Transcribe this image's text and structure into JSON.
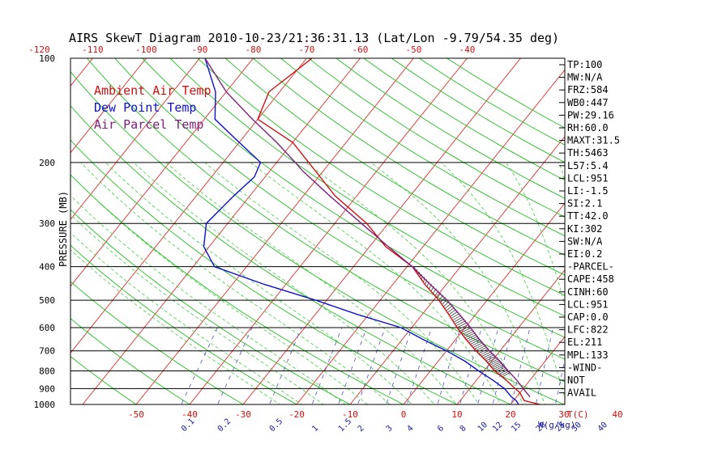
{
  "chart_data": {
    "type": "line",
    "title": "AIRS SkewT Diagram 2010-10-23/21:36:31.13 (Lat/Lon -9.79/54.35 deg)",
    "ylabel": "PRESSURE (MB)",
    "xlabel": "T(C)",
    "mixing_ratio_unit": "W(g/kg)",
    "y_scale": "log",
    "ylim": [
      1000,
      100
    ],
    "y_ticks": [
      100,
      200,
      300,
      400,
      500,
      600,
      700,
      800,
      900,
      1000
    ],
    "bottom_temp_ticks": [
      "-50",
      "-40",
      "-30",
      "-20",
      "-10",
      "0",
      "10",
      "20",
      "30",
      "40"
    ],
    "top_temp_ticks": [
      "-120",
      "-110",
      "-100",
      "-90",
      "-80",
      "-70",
      "-60",
      "-50",
      "-40"
    ],
    "mixing_ratio_ticks": [
      "0.1",
      "0.2",
      "0.5",
      "1",
      "1.5",
      "2",
      "3",
      "4",
      "6",
      "8",
      "10",
      "12",
      "15",
      "20",
      "25",
      "30",
      "40"
    ],
    "legend": {
      "placement": "top-left",
      "entries": [
        {
          "name": "Ambient Air Temp",
          "color": "#d01010"
        },
        {
          "name": "Dew Point Temp",
          "color": "#1010d0"
        },
        {
          "name": "Air Parcel Temp",
          "color": "#802080"
        }
      ]
    },
    "series": [
      {
        "name": "Ambient Air Temp",
        "color": "#d01010",
        "points": [
          [
            1000,
            25.5
          ],
          [
            975,
            22
          ],
          [
            950,
            21
          ],
          [
            925,
            20
          ],
          [
            900,
            18.5
          ],
          [
            850,
            15.5
          ],
          [
            800,
            12
          ],
          [
            750,
            9
          ],
          [
            700,
            5.5
          ],
          [
            650,
            2
          ],
          [
            600,
            -1.5
          ],
          [
            550,
            -5
          ],
          [
            500,
            -9
          ],
          [
            450,
            -14
          ],
          [
            400,
            -19
          ],
          [
            350,
            -27
          ],
          [
            300,
            -34
          ],
          [
            250,
            -44
          ],
          [
            200,
            -54
          ],
          [
            175,
            -60
          ],
          [
            150,
            -70
          ],
          [
            125,
            -72
          ],
          [
            100,
            -69
          ]
        ]
      },
      {
        "name": "Dew Point Temp",
        "color": "#1010d0",
        "points": [
          [
            1000,
            21.5
          ],
          [
            975,
            20.5
          ],
          [
            950,
            19
          ],
          [
            900,
            16.5
          ],
          [
            850,
            13
          ],
          [
            800,
            9
          ],
          [
            750,
            5
          ],
          [
            700,
            0
          ],
          [
            650,
            -6
          ],
          [
            600,
            -12
          ],
          [
            550,
            -22
          ],
          [
            500,
            -32
          ],
          [
            450,
            -44
          ],
          [
            400,
            -56
          ],
          [
            350,
            -61
          ],
          [
            300,
            -64
          ],
          [
            250,
            -63
          ],
          [
            220,
            -62
          ],
          [
            200,
            -63
          ],
          [
            175,
            -70
          ],
          [
            150,
            -78
          ],
          [
            125,
            -82
          ],
          [
            100,
            -89
          ]
        ]
      },
      {
        "name": "Air Parcel Temp",
        "color": "#802080",
        "points": [
          [
            951,
            22.5
          ],
          [
            900,
            20
          ],
          [
            850,
            17.5
          ],
          [
            800,
            14.5
          ],
          [
            750,
            11.5
          ],
          [
            700,
            8
          ],
          [
            650,
            4.5
          ],
          [
            600,
            1
          ],
          [
            550,
            -3
          ],
          [
            500,
            -7.5
          ],
          [
            450,
            -13
          ],
          [
            400,
            -19
          ],
          [
            350,
            -26.5
          ],
          [
            300,
            -35
          ],
          [
            250,
            -45
          ],
          [
            211,
            -54
          ],
          [
            200,
            -56.5
          ],
          [
            175,
            -63
          ],
          [
            150,
            -71
          ],
          [
            125,
            -80
          ],
          [
            100,
            -89
          ]
        ]
      }
    ],
    "indices": [
      "TP:100",
      "MW:N/A",
      "FRZ:584",
      "WB0:447",
      "PW:29.16",
      "RH:60.0",
      "MAXT:31.5",
      "TH:5463",
      "L57:5.4",
      "LCL:951",
      "LI:-1.5",
      "SI:2.1",
      "TT:42.0",
      "KI:302",
      "SW:N/A",
      "EI:0.2",
      "-PARCEL-",
      "CAPE:458",
      "CINH:60",
      "LCL:951",
      "CAP:0.0",
      "LFC:822",
      "EL:211",
      "MPL:133",
      "-WIND-",
      "NOT",
      "AVAIL"
    ],
    "grid": true,
    "colors": {
      "isotherm": "#e03030",
      "dry_adiabat": "#20c020",
      "moist_adiabat": "#40d040",
      "mixing_ratio": "#5050c0",
      "cape_hatch": "#404040"
    }
  }
}
